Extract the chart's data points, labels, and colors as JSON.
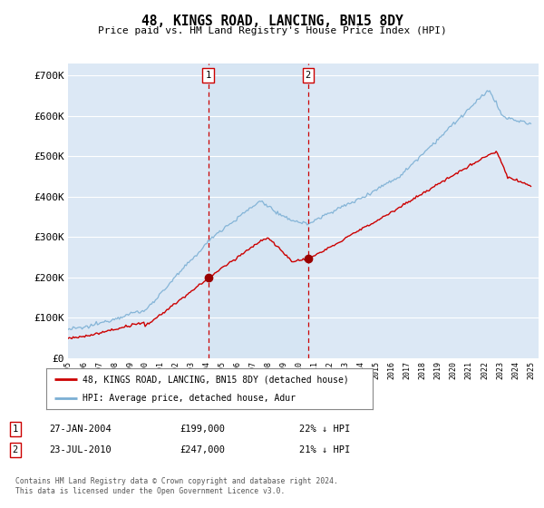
{
  "title": "48, KINGS ROAD, LANCING, BN15 8DY",
  "subtitle": "Price paid vs. HM Land Registry's House Price Index (HPI)",
  "ylabel_ticks": [
    "£0",
    "£100K",
    "£200K",
    "£300K",
    "£400K",
    "£500K",
    "£600K",
    "£700K"
  ],
  "ytick_values": [
    0,
    100000,
    200000,
    300000,
    400000,
    500000,
    600000,
    700000
  ],
  "ylim": [
    0,
    730000
  ],
  "xlim_start": 1995.0,
  "xlim_end": 2025.5,
  "purchase1_x": 2004.08,
  "purchase1_y": 199000,
  "purchase1_label": "27-JAN-2004",
  "purchase1_price": "£199,000",
  "purchase1_hpi": "22% ↓ HPI",
  "purchase2_x": 2010.56,
  "purchase2_y": 247000,
  "purchase2_label": "23-JUL-2010",
  "purchase2_price": "£247,000",
  "purchase2_hpi": "21% ↓ HPI",
  "legend_line1": "48, KINGS ROAD, LANCING, BN15 8DY (detached house)",
  "legend_line2": "HPI: Average price, detached house, Adur",
  "footer": "Contains HM Land Registry data © Crown copyright and database right 2024.\nThis data is licensed under the Open Government Licence v3.0.",
  "hpi_color": "#7bafd4",
  "price_color": "#cc0000",
  "bg_color_chart": "#dce8f5",
  "grid_color": "#ffffff",
  "vline_color": "#cc0000"
}
